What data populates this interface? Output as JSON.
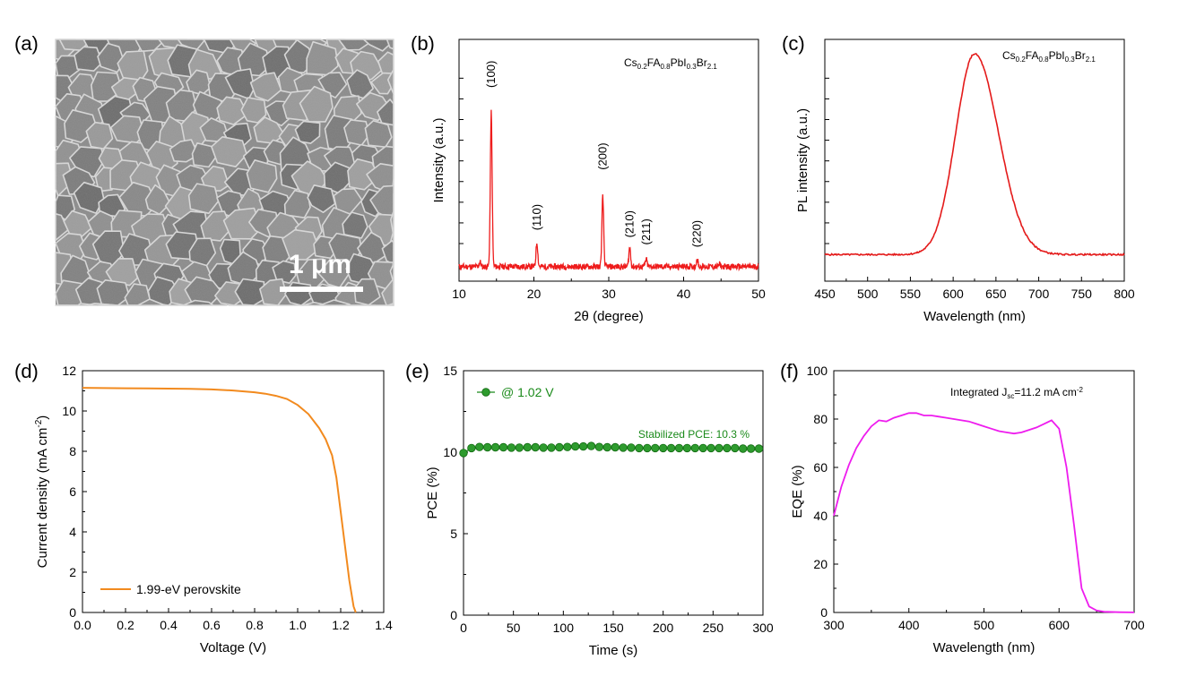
{
  "colors": {
    "xrd": "#ee1c1c",
    "pl": "#e41a1a",
    "jv": "#f28a1e",
    "pce": "#1a8a1a",
    "pce_marker": "#2e9b2e",
    "eqe": "#ee1cee",
    "sem_scale": "#ffffff"
  },
  "panels": {
    "a": {
      "label": "(a)",
      "scale_bar_text": "1 μm"
    },
    "b": {
      "label": "(b)",
      "formula": {
        "base": [
          "Cs",
          "FA",
          "PbI",
          "Br"
        ],
        "subs": [
          "0.2",
          "0.8",
          "0.3",
          "2.1"
        ]
      }
    },
    "c": {
      "label": "(c)",
      "formula": {
        "base": [
          "Cs",
          "FA",
          "PbI",
          "Br"
        ],
        "subs": [
          "0.2",
          "0.8",
          "0.3",
          "2.1"
        ]
      }
    },
    "d": {
      "label": "(d)"
    },
    "e": {
      "label": "(e)"
    },
    "f": {
      "label": "(f)",
      "annotation_prefix": "Integrated J",
      "annotation_sub": "sc",
      "annotation_value": "=11.2 mA cm",
      "annotation_sup": "-2"
    }
  },
  "chart_data": [
    {
      "id": "b",
      "type": "line",
      "title": "",
      "xlabel": "2θ (degree)",
      "ylabel": "Intensity (a.u.)",
      "xlim": [
        10,
        50
      ],
      "ylim": [
        0,
        1
      ],
      "xticks": [
        10,
        20,
        30,
        40,
        50
      ],
      "y_ticks_unlabeled": true,
      "series": [
        {
          "baseline": 0.06,
          "peaks": [
            {
              "x": 14.3,
              "height": 0.64
            },
            {
              "x": 20.4,
              "height": 0.1
            },
            {
              "x": 29.2,
              "height": 0.29
            },
            {
              "x": 32.8,
              "height": 0.08
            },
            {
              "x": 35.0,
              "height": 0.03
            },
            {
              "x": 41.8,
              "height": 0.03
            },
            {
              "x": 12.8,
              "height": 0.02
            },
            {
              "x": 44.8,
              "height": 0.01
            }
          ]
        }
      ],
      "peak_labels": [
        {
          "x": 14.3,
          "y": 0.8,
          "text": "(100)"
        },
        {
          "x": 20.4,
          "y": 0.21,
          "text": "(110)"
        },
        {
          "x": 29.2,
          "y": 0.46,
          "text": "(200)"
        },
        {
          "x": 32.8,
          "y": 0.18,
          "text": "(210)"
        },
        {
          "x": 35.0,
          "y": 0.15,
          "text": "(211)"
        },
        {
          "x": 41.8,
          "y": 0.14,
          "text": "(220)"
        }
      ]
    },
    {
      "id": "c",
      "type": "line",
      "title": "",
      "xlabel": "Wavelength (nm)",
      "ylabel": "PL intensity (a.u.)",
      "xlim": [
        450,
        800
      ],
      "ylim": [
        0,
        1
      ],
      "xticks": [
        450,
        500,
        550,
        600,
        650,
        700,
        750,
        800
      ],
      "y_ticks_unlabeled": true,
      "series": [
        {
          "peak_x": 625,
          "peak_y": 0.94,
          "baseline": 0.11,
          "width_left": 22,
          "width_right": 28
        }
      ]
    },
    {
      "id": "d",
      "type": "line",
      "title": "",
      "xlabel": "Voltage (V)",
      "ylabel": "Current density (mA cm",
      "ylabel_sup": "-2",
      "ylabel_suffix": ")",
      "xlim": [
        0.0,
        1.4
      ],
      "ylim": [
        0,
        12
      ],
      "xticks": [
        0.0,
        0.2,
        0.4,
        0.6,
        0.8,
        1.0,
        1.2,
        1.4
      ],
      "yticks": [
        0,
        2,
        4,
        6,
        8,
        10,
        12
      ],
      "legend": "lower-left",
      "series": [
        {
          "name": "1.99-eV perovskite",
          "x": [
            0.0,
            0.1,
            0.2,
            0.3,
            0.4,
            0.5,
            0.6,
            0.7,
            0.8,
            0.85,
            0.9,
            0.95,
            1.0,
            1.05,
            1.1,
            1.13,
            1.16,
            1.18,
            1.2,
            1.22,
            1.24,
            1.26,
            1.27
          ],
          "y": [
            11.15,
            11.14,
            11.13,
            11.12,
            11.11,
            11.1,
            11.07,
            11.02,
            10.93,
            10.86,
            10.75,
            10.6,
            10.3,
            9.85,
            9.15,
            8.6,
            7.8,
            6.7,
            5.0,
            3.3,
            1.6,
            0.3,
            0.0
          ]
        }
      ]
    },
    {
      "id": "e",
      "type": "line",
      "title": "",
      "xlabel": "Time (s)",
      "ylabel": "PCE (%)",
      "xlim": [
        0,
        300
      ],
      "ylim": [
        0,
        15
      ],
      "xticks": [
        0,
        50,
        100,
        150,
        200,
        250,
        300
      ],
      "yticks": [
        0,
        5,
        10,
        15
      ],
      "legend": "top-left",
      "annotation": "Stabilized PCE: 10.3 %",
      "series": [
        {
          "name": "@ 1.02 V",
          "x": [
            0,
            8,
            16,
            24,
            32,
            40,
            48,
            56,
            64,
            72,
            80,
            88,
            96,
            104,
            112,
            120,
            128,
            136,
            144,
            152,
            160,
            168,
            176,
            184,
            192,
            200,
            208,
            216,
            224,
            232,
            240,
            248,
            256,
            264,
            272,
            280,
            288,
            296
          ],
          "y": [
            9.95,
            10.25,
            10.32,
            10.3,
            10.3,
            10.3,
            10.28,
            10.28,
            10.3,
            10.3,
            10.28,
            10.28,
            10.3,
            10.32,
            10.35,
            10.35,
            10.38,
            10.32,
            10.3,
            10.3,
            10.28,
            10.28,
            10.25,
            10.25,
            10.25,
            10.25,
            10.25,
            10.25,
            10.25,
            10.25,
            10.25,
            10.25,
            10.25,
            10.25,
            10.25,
            10.22,
            10.22,
            10.22
          ]
        }
      ]
    },
    {
      "id": "f",
      "type": "line",
      "title": "",
      "xlabel": "Wavelength (nm)",
      "ylabel": "EQE (%)",
      "xlim": [
        300,
        700
      ],
      "ylim": [
        0,
        100
      ],
      "xticks": [
        300,
        400,
        500,
        600,
        700
      ],
      "yticks": [
        0,
        20,
        40,
        60,
        80,
        100
      ],
      "series": [
        {
          "x": [
            300,
            310,
            320,
            330,
            340,
            350,
            360,
            370,
            380,
            390,
            400,
            410,
            420,
            430,
            440,
            450,
            460,
            470,
            480,
            490,
            500,
            510,
            520,
            530,
            540,
            550,
            560,
            570,
            580,
            590,
            600,
            610,
            620,
            630,
            640,
            650,
            660,
            680,
            700
          ],
          "y": [
            40,
            52,
            61,
            68,
            73,
            77,
            79.5,
            79,
            80.5,
            81.5,
            82.5,
            82.5,
            81.5,
            81.5,
            81,
            80.5,
            80,
            79.5,
            79,
            78,
            77,
            76,
            75,
            74.5,
            74,
            74.5,
            75.5,
            76.5,
            78,
            79.5,
            76,
            60,
            36,
            10,
            2.5,
            0.8,
            0.3,
            0.1,
            0.05
          ]
        }
      ]
    }
  ]
}
